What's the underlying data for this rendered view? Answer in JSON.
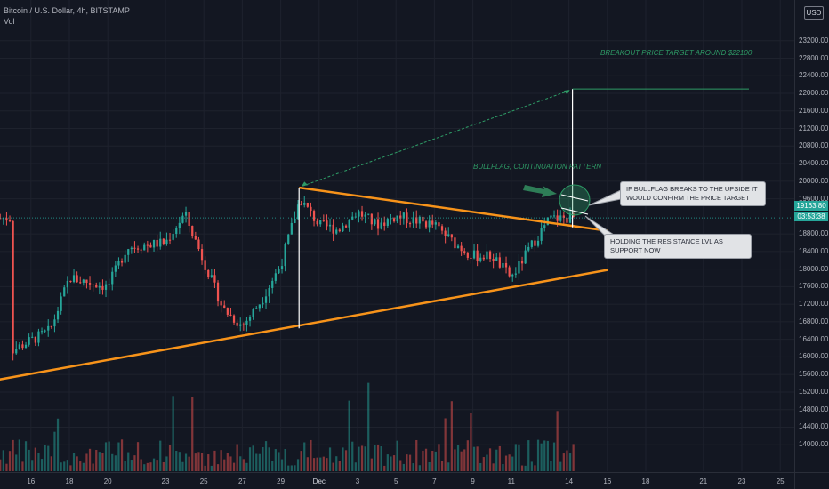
{
  "header": {
    "symbol": "Bitcoin / U.S. Dollar, 4h, BITSTAMP",
    "volume_label": "Vol",
    "currency_badge": "USD"
  },
  "price_axis": {
    "ticks": [
      "23200.00",
      "22800.00",
      "22400.00",
      "22000.00",
      "21600.00",
      "21200.00",
      "20800.00",
      "20400.00",
      "20000.00",
      "19600.00",
      "18800.00",
      "18400.00",
      "18000.00",
      "17600.00",
      "17200.00",
      "16800.00",
      "16400.00",
      "16000.00",
      "15600.00",
      "15200.00",
      "14800.00",
      "14400.00",
      "14000.00"
    ],
    "last_price": "19163.80",
    "countdown": "03:53:38"
  },
  "time_axis": {
    "ticks": [
      "16",
      "18",
      "20",
      "23",
      "25",
      "27",
      "29",
      "Dec",
      "3",
      "5",
      "7",
      "9",
      "11",
      "14",
      "16",
      "18",
      "21",
      "23",
      "25"
    ]
  },
  "annotations": {
    "breakout_target": "BREAKOUT PRICE TARGET AROUND $22100",
    "bullflag_title": "BULLFLAG, CONTINUATION PATTERN",
    "callout_upper": "IF BULLFLAG BREAKS TO THE UPSIDE IT WOULD CONFIRM THE PRICE TARGET",
    "callout_lower": "HOLDING THE RESISTANCE LVL AS SUPPORT NOW"
  },
  "colors": {
    "background": "#131722",
    "up": "#26a69a",
    "down": "#ef5350",
    "trendline": "#f7931a",
    "annotation_green": "#2e9b66",
    "price_line": "#26a69a"
  },
  "chart_data": {
    "type": "candlestick",
    "symbol": "Bitcoin / U.S. Dollar",
    "interval": "4h",
    "exchange": "BITSTAMP",
    "ylim": [
      13900,
      23300
    ],
    "last_price": 19163.8,
    "price_anchors": [
      {
        "x": "Nov 15",
        "close": 16150
      },
      {
        "x": "Nov 17",
        "close": 16600
      },
      {
        "x": "Nov 18",
        "close": 17800
      },
      {
        "x": "Nov 20",
        "close": 17600
      },
      {
        "x": "Nov 21",
        "close": 18500
      },
      {
        "x": "Nov 23",
        "close": 18600
      },
      {
        "x": "Nov 24",
        "close": 19250
      },
      {
        "x": "Nov 26",
        "close": 17100
      },
      {
        "x": "Nov 27",
        "close": 16700
      },
      {
        "x": "Nov 28",
        "close": 17300
      },
      {
        "x": "Nov 29",
        "close": 18100
      },
      {
        "x": "Nov 30",
        "close": 19600
      },
      {
        "x": "Dec 1",
        "close": 19000
      },
      {
        "x": "Dec 2",
        "close": 18900
      },
      {
        "x": "Dec 3",
        "close": 19300
      },
      {
        "x": "Dec 4",
        "close": 19000
      },
      {
        "x": "Dec 5",
        "close": 19200
      },
      {
        "x": "Dec 6",
        "close": 19100
      },
      {
        "x": "Dec 7",
        "close": 19000
      },
      {
        "x": "Dec 8",
        "close": 18600
      },
      {
        "x": "Dec 9",
        "close": 18300
      },
      {
        "x": "Dec 10",
        "close": 18300
      },
      {
        "x": "Dec 11",
        "close": 17800
      },
      {
        "x": "Dec 12",
        "close": 18500
      },
      {
        "x": "Dec 13",
        "close": 19150
      },
      {
        "x": "Dec 14",
        "close": 19160
      }
    ],
    "trendlines": [
      {
        "name": "resistance",
        "from": {
          "x": "Nov 30",
          "y": 19850
        },
        "to": {
          "x": "Dec 16",
          "y": 18870
        }
      },
      {
        "name": "support",
        "from": {
          "x": "Nov 12",
          "y": 15300
        },
        "to": {
          "x": "Dec 16",
          "y": 17980
        }
      }
    ],
    "price_target": 22100
  }
}
